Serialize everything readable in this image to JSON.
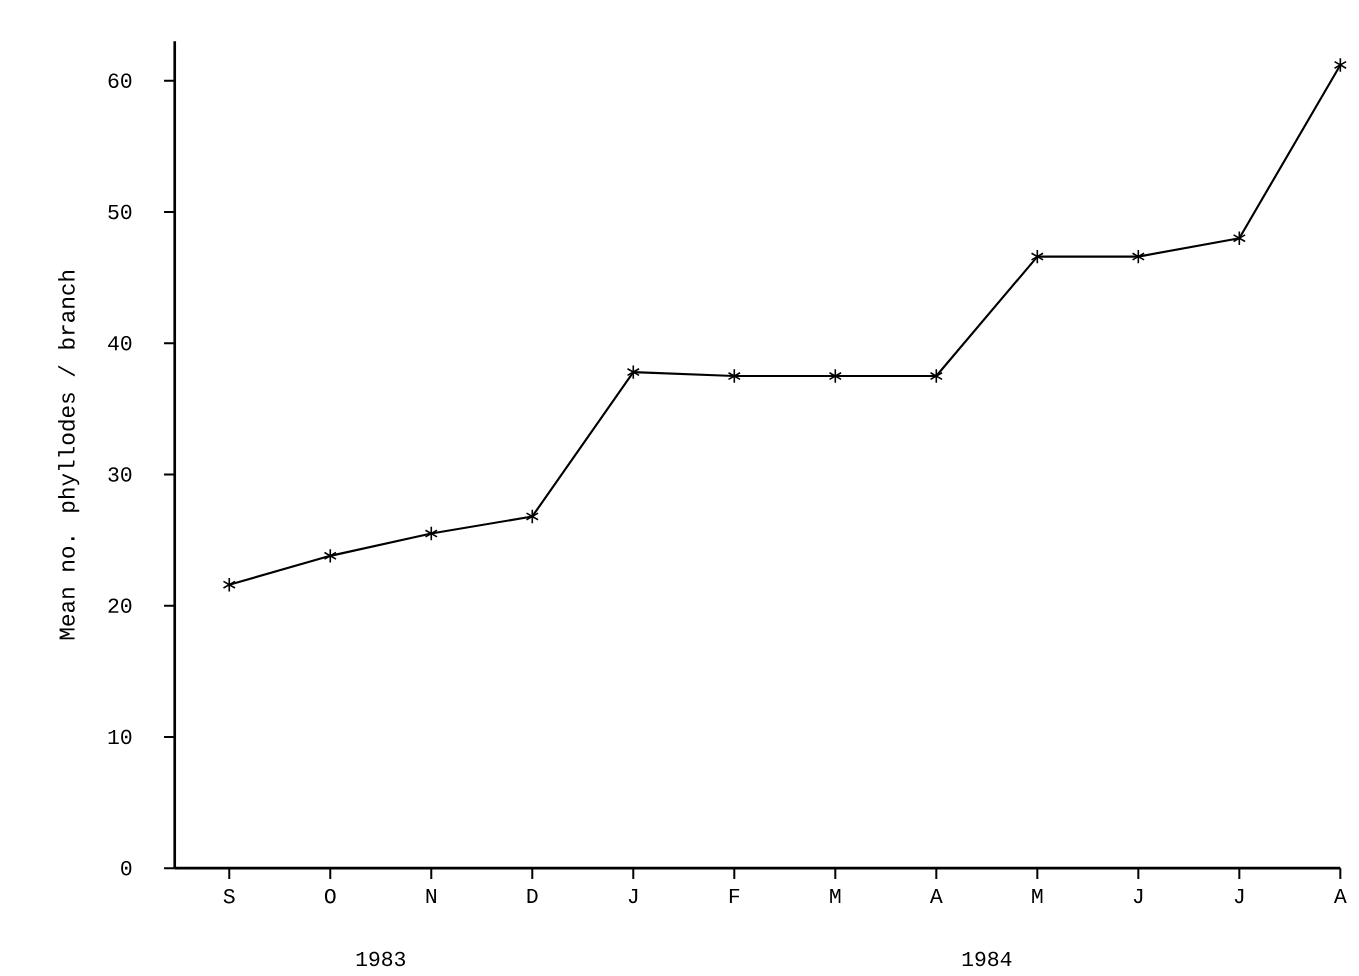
{
  "chart_data": {
    "type": "line",
    "ylabel": "Mean no. phyllodes / branch",
    "categories": [
      "S",
      "O",
      "N",
      "D",
      "J",
      "F",
      "M",
      "A",
      "M",
      "J",
      "J",
      "A"
    ],
    "values": [
      21.6,
      23.8,
      25.5,
      26.8,
      37.8,
      37.5,
      37.5,
      37.5,
      46.6,
      46.6,
      48.0,
      61.2
    ],
    "color": "#000000",
    "marker": "cross",
    "line_style": "solid",
    "ylim": [
      0,
      63
    ],
    "yticks": [
      0,
      10,
      20,
      30,
      40,
      50,
      60
    ],
    "grid": false,
    "annotations": [
      "1983",
      "1984"
    ]
  }
}
